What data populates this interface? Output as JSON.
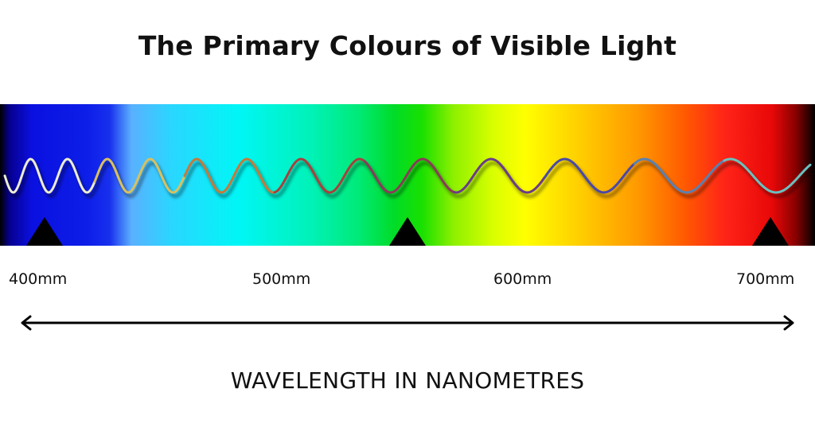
{
  "title": "The Primary Colours of Visible Light",
  "scale": {
    "tick_labels": [
      "400mm",
      "500mm",
      "600mm",
      "700mm"
    ]
  },
  "axis": {
    "caption": "WAVELENGTH IN NANOMETRES"
  },
  "colors": {
    "text": "#111111",
    "marker": "#000000",
    "spectrum_stops": [
      "#000000",
      "#0a10e0",
      "#00f6f6",
      "#00dc28",
      "#ffff00",
      "#ff9a00",
      "#e80808",
      "#000000"
    ],
    "wave_segments": [
      "#ececd0",
      "#d8c060",
      "#c47a3a",
      "#a8403e",
      "#8a3a5a",
      "#6a3a8a",
      "#4848a8",
      "#5a80b0",
      "#6ac0c0"
    ]
  }
}
